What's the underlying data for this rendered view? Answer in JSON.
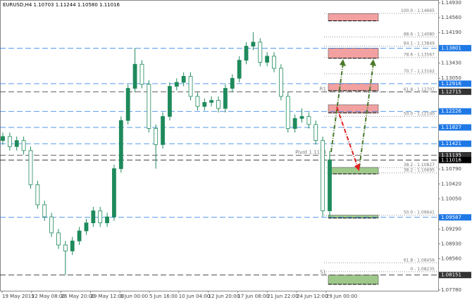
{
  "chart_data": {
    "type": "candlestick",
    "title": "EURUSD,H4  1.10703 1.11244 1.10580 1.11016",
    "color": "#1f8a5c",
    "candles": [
      [
        1.115,
        1.117,
        1.114,
        1.116
      ],
      [
        1.116,
        1.117,
        1.1125,
        1.1135
      ],
      [
        1.1135,
        1.116,
        1.1125,
        1.115
      ],
      [
        1.115,
        1.116,
        1.1115,
        1.1125
      ],
      [
        1.1125,
        1.1135,
        1.103,
        1.104
      ],
      [
        1.104,
        1.105,
        1.098,
        1.099
      ],
      [
        1.099,
        1.1,
        1.095,
        1.096
      ],
      [
        1.096,
        1.097,
        1.091,
        1.092
      ],
      [
        1.092,
        1.093,
        1.088,
        1.089
      ],
      [
        1.089,
        1.09,
        1.0815,
        1.0875
      ],
      [
        1.0875,
        1.091,
        1.0865,
        1.09
      ],
      [
        1.09,
        1.0935,
        1.089,
        1.0925
      ],
      [
        1.0925,
        1.0955,
        1.0915,
        1.0945
      ],
      [
        1.0945,
        1.0985,
        1.0935,
        1.0975
      ],
      [
        1.0975,
        1.0985,
        1.0935,
        1.0945
      ],
      [
        1.0945,
        1.097,
        1.0935,
        1.096
      ],
      [
        1.096,
        1.109,
        1.095,
        1.108
      ],
      [
        1.108,
        1.121,
        1.107,
        1.12
      ],
      [
        1.12,
        1.129,
        1.119,
        1.128
      ],
      [
        1.128,
        1.138,
        1.127,
        1.134
      ],
      [
        1.134,
        1.135,
        1.128,
        1.129
      ],
      [
        1.129,
        1.13,
        1.117,
        1.118
      ],
      [
        1.118,
        1.119,
        1.108,
        1.114
      ],
      [
        1.114,
        1.122,
        1.113,
        1.121
      ],
      [
        1.121,
        1.1295,
        1.12,
        1.1285
      ],
      [
        1.1285,
        1.1305,
        1.1275,
        1.1295
      ],
      [
        1.1295,
        1.132,
        1.1285,
        1.131
      ],
      [
        1.131,
        1.132,
        1.125,
        1.126
      ],
      [
        1.126,
        1.127,
        1.1225,
        1.1235
      ],
      [
        1.1235,
        1.1255,
        1.1225,
        1.1245
      ],
      [
        1.1245,
        1.126,
        1.1235,
        1.125
      ],
      [
        1.125,
        1.126,
        1.122,
        1.123
      ],
      [
        1.123,
        1.129,
        1.122,
        1.128
      ],
      [
        1.128,
        1.1315,
        1.127,
        1.1305
      ],
      [
        1.1305,
        1.136,
        1.1295,
        1.135
      ],
      [
        1.135,
        1.1395,
        1.134,
        1.1385
      ],
      [
        1.1385,
        1.142,
        1.1375,
        1.1395
      ],
      [
        1.1395,
        1.1405,
        1.1335,
        1.1345
      ],
      [
        1.1345,
        1.137,
        1.1335,
        1.136
      ],
      [
        1.136,
        1.137,
        1.132,
        1.133
      ],
      [
        1.133,
        1.134,
        1.125,
        1.126
      ],
      [
        1.126,
        1.127,
        1.117,
        1.118
      ],
      [
        1.118,
        1.1215,
        1.117,
        1.1205
      ],
      [
        1.1205,
        1.123,
        1.1195,
        1.121
      ],
      [
        1.121,
        1.122,
        1.118,
        1.119
      ],
      [
        1.119,
        1.12,
        1.114,
        1.115
      ],
      [
        1.115,
        1.116,
        1.096,
        1.0975
      ],
      [
        1.0975,
        1.1124,
        1.0958,
        1.1102
      ]
    ],
    "x_labels": [
      "19 May 2015",
      "22 May 08:00",
      "26 May 20:00",
      "29 May 12:00",
      "3 Jun 00:00",
      "5 Jun 16:00",
      "10 Jun 04:00",
      "12 Jun 20:00",
      "17 Jun 08:00",
      "21 Jun 22:00",
      "24 Jun 12:00",
      "29 Jun 00:00"
    ],
    "ylim": [
      1.0776,
      1.15
    ],
    "yticks": [
      {
        "value": 1.1493,
        "label": "1.14930"
      },
      {
        "value": 1.1456,
        "label": "1.14560"
      },
      {
        "value": 1.1419,
        "label": "1.14190"
      },
      {
        "value": 1.1343,
        "label": "1.13430"
      },
      {
        "value": 1.1305,
        "label": "1.13050"
      },
      {
        "value": 1.1079,
        "label": "1.10790"
      },
      {
        "value": 1.1042,
        "label": "1.10420"
      },
      {
        "value": 1.1005,
        "label": "1.10050"
      },
      {
        "value": 1.0929,
        "label": "1.09290"
      },
      {
        "value": 1.0893,
        "label": "1.08930"
      },
      {
        "value": 1.0856,
        "label": "1.08560"
      },
      {
        "value": 1.0778,
        "label": "1.07780"
      }
    ],
    "levels": [
      {
        "value": 1.13801,
        "color": "#1e78e6"
      },
      {
        "value": 1.12916,
        "color": "#1e78e6"
      },
      {
        "value": 1.12715,
        "color": "#333333"
      },
      {
        "value": 1.12226,
        "color": "#1e78e6"
      },
      {
        "value": 1.11827,
        "color": "#1e78e6"
      },
      {
        "value": 1.11421,
        "color": "#1e78e6"
      },
      {
        "value": 1.11135,
        "color": "#333333"
      },
      {
        "value": 1.11016,
        "color": "#000000"
      },
      {
        "value": 1.09587,
        "color": "#1e78e6"
      },
      {
        "value": 1.08151,
        "color": "#333333"
      }
    ],
    "level_notes": [
      {
        "value": 1.12715,
        "label": "R1"
      },
      {
        "value": 1.11135,
        "label": "Pivot 1.1113"
      },
      {
        "value": 1.08151,
        "label": "S1"
      }
    ],
    "fib_levels": [
      {
        "value": 1.14665,
        "label": "100.0 - 1.14665"
      },
      {
        "value": 1.1408,
        "label": "88.6 - 1.14080"
      },
      {
        "value": 1.13849,
        "label": "84.1 - 1.13849"
      },
      {
        "value": 1.13567,
        "label": "78.6 - 1.13567"
      },
      {
        "value": 1.13162,
        "label": "70.7 - 1.13162"
      },
      {
        "value": 1.12707,
        "label": "61.8 - 1.12707"
      },
      {
        "value": 1.121,
        "label": "50.0 - 1.12100"
      },
      {
        "value": 1.10827,
        "label": "38.2 - 1.10827"
      },
      {
        "value": 1.10695,
        "label": "38.2 - 1.10695"
      },
      {
        "value": 1.09641,
        "label": "50.0 - 1.09641"
      },
      {
        "value": 1.08456,
        "label": "61.8 - 1.08456"
      },
      {
        "value": 1.08235,
        "label": "0 - 1.08235"
      }
    ],
    "zones": [
      {
        "top": 1.1466,
        "bottom": 1.1448,
        "color": "#f2a0a0"
      },
      {
        "top": 1.138,
        "bottom": 1.1355,
        "color": "#f2a0a0"
      },
      {
        "top": 1.1292,
        "bottom": 1.1274,
        "color": "#f2a0a0"
      },
      {
        "top": 1.1239,
        "bottom": 1.1219,
        "color": "#f2a0a0"
      },
      {
        "top": 1.1083,
        "bottom": 1.1067,
        "color": "#9fc98a"
      },
      {
        "top": 1.0964,
        "bottom": 1.0957,
        "color": "#9fc98a"
      },
      {
        "top": 1.0815,
        "bottom": 1.0792,
        "color": "#9fc98a"
      }
    ]
  }
}
